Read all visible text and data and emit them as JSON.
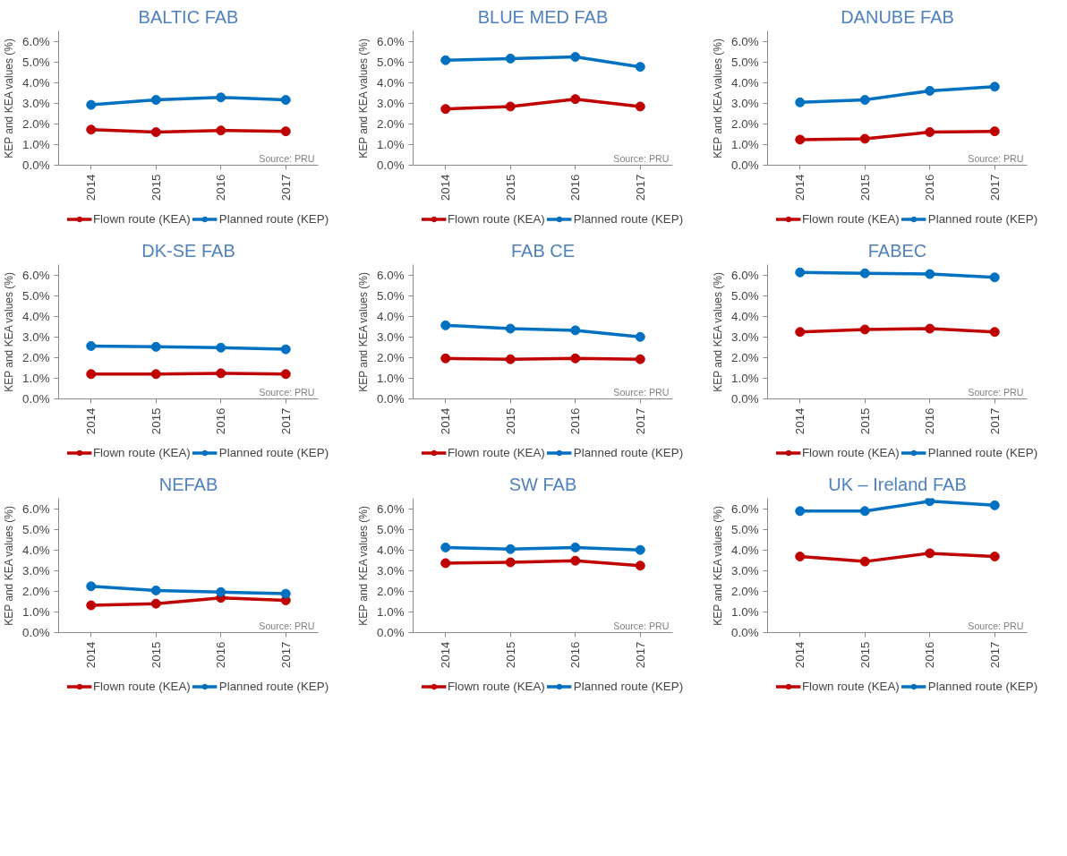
{
  "chart_data": [
    {
      "type": "line",
      "title": "BALTIC FAB",
      "ylabel": "KEP and KEA values (%)",
      "categories": [
        "2014",
        "2015",
        "2016",
        "2017"
      ],
      "ylim": [
        0,
        6.5
      ],
      "yticks": [
        {
          "value": 0,
          "label": "0.0%"
        },
        {
          "value": 1,
          "label": "1.0%"
        },
        {
          "value": 2,
          "label": "2.0%"
        },
        {
          "value": 3,
          "label": "3.0%"
        },
        {
          "value": 4,
          "label": "4.0%"
        },
        {
          "value": 5,
          "label": "5.0%"
        },
        {
          "value": 6,
          "label": "6.0%"
        }
      ],
      "marker": "circle",
      "grid": false,
      "legend": "bottom",
      "annotations": [
        "Source: PRU"
      ],
      "series": [
        {
          "name": "Flown route (KEA)",
          "color": "#c00000",
          "values": [
            1.72,
            1.6,
            1.68,
            1.64
          ]
        },
        {
          "name": "Planned route (KEP)",
          "color": "#0070c0",
          "values": [
            2.92,
            3.16,
            3.28,
            3.16
          ]
        }
      ]
    },
    {
      "type": "line",
      "title": "BLUE MED FAB",
      "ylabel": "KEP and KEA values (%)",
      "categories": [
        "2014",
        "2015",
        "2016",
        "2017"
      ],
      "ylim": [
        0,
        6.5
      ],
      "yticks": [
        {
          "value": 0,
          "label": "0.0%"
        },
        {
          "value": 1,
          "label": "1.0%"
        },
        {
          "value": 2,
          "label": "2.0%"
        },
        {
          "value": 3,
          "label": "3.0%"
        },
        {
          "value": 4,
          "label": "4.0%"
        },
        {
          "value": 5,
          "label": "5.0%"
        },
        {
          "value": 6,
          "label": "6.0%"
        }
      ],
      "marker": "circle",
      "grid": false,
      "legend": "bottom",
      "annotations": [
        "Source: PRU"
      ],
      "series": [
        {
          "name": "Flown route (KEA)",
          "color": "#c00000",
          "values": [
            2.72,
            2.84,
            3.2,
            2.84
          ]
        },
        {
          "name": "Planned route (KEP)",
          "color": "#0070c0",
          "values": [
            5.08,
            5.16,
            5.24,
            4.76
          ]
        }
      ]
    },
    {
      "type": "line",
      "title": "DANUBE FAB",
      "ylabel": "KEP and KEA values (%)",
      "categories": [
        "2014",
        "2015",
        "2016",
        "2017"
      ],
      "ylim": [
        0,
        6.5
      ],
      "yticks": [
        {
          "value": 0,
          "label": "0.0%"
        },
        {
          "value": 1,
          "label": "1.0%"
        },
        {
          "value": 2,
          "label": "2.0%"
        },
        {
          "value": 3,
          "label": "3.0%"
        },
        {
          "value": 4,
          "label": "4.0%"
        },
        {
          "value": 5,
          "label": "5.0%"
        },
        {
          "value": 6,
          "label": "6.0%"
        }
      ],
      "marker": "circle",
      "grid": false,
      "legend": "bottom",
      "annotations": [
        "Source: PRU"
      ],
      "series": [
        {
          "name": "Flown route (KEA)",
          "color": "#c00000",
          "values": [
            1.24,
            1.28,
            1.6,
            1.64
          ]
        },
        {
          "name": "Planned route (KEP)",
          "color": "#0070c0",
          "values": [
            3.04,
            3.16,
            3.6,
            3.8
          ]
        }
      ]
    },
    {
      "type": "line",
      "title": "DK-SE FAB",
      "ylabel": "KEP and KEA values (%)",
      "categories": [
        "2014",
        "2015",
        "2016",
        "2017"
      ],
      "ylim": [
        0,
        6.5
      ],
      "yticks": [
        {
          "value": 0,
          "label": "0.0%"
        },
        {
          "value": 1,
          "label": "1.0%"
        },
        {
          "value": 2,
          "label": "2.0%"
        },
        {
          "value": 3,
          "label": "3.0%"
        },
        {
          "value": 4,
          "label": "4.0%"
        },
        {
          "value": 5,
          "label": "5.0%"
        },
        {
          "value": 6,
          "label": "6.0%"
        }
      ],
      "marker": "circle",
      "grid": false,
      "legend": "bottom",
      "annotations": [
        "Source: PRU"
      ],
      "series": [
        {
          "name": "Flown route (KEA)",
          "color": "#c00000",
          "values": [
            1.2,
            1.2,
            1.24,
            1.2
          ]
        },
        {
          "name": "Planned route (KEP)",
          "color": "#0070c0",
          "values": [
            2.56,
            2.52,
            2.48,
            2.4
          ]
        }
      ]
    },
    {
      "type": "line",
      "title": "FAB CE",
      "ylabel": "KEP and KEA values (%)",
      "categories": [
        "2014",
        "2015",
        "2016",
        "2017"
      ],
      "ylim": [
        0,
        6.5
      ],
      "yticks": [
        {
          "value": 0,
          "label": "0.0%"
        },
        {
          "value": 1,
          "label": "1.0%"
        },
        {
          "value": 2,
          "label": "2.0%"
        },
        {
          "value": 3,
          "label": "3.0%"
        },
        {
          "value": 4,
          "label": "4.0%"
        },
        {
          "value": 5,
          "label": "5.0%"
        },
        {
          "value": 6,
          "label": "6.0%"
        }
      ],
      "marker": "circle",
      "grid": false,
      "legend": "bottom",
      "annotations": [
        "Source: PRU"
      ],
      "series": [
        {
          "name": "Flown route (KEA)",
          "color": "#c00000",
          "values": [
            1.96,
            1.92,
            1.96,
            1.92
          ]
        },
        {
          "name": "Planned route (KEP)",
          "color": "#0070c0",
          "values": [
            3.56,
            3.4,
            3.32,
            3.0
          ]
        }
      ]
    },
    {
      "type": "line",
      "title": "FABEC",
      "ylabel": "KEP and KEA values (%)",
      "categories": [
        "2014",
        "2015",
        "2016",
        "2017"
      ],
      "ylim": [
        0,
        6.5
      ],
      "yticks": [
        {
          "value": 0,
          "label": "0.0%"
        },
        {
          "value": 1,
          "label": "1.0%"
        },
        {
          "value": 2,
          "label": "2.0%"
        },
        {
          "value": 3,
          "label": "3.0%"
        },
        {
          "value": 4,
          "label": "4.0%"
        },
        {
          "value": 5,
          "label": "5.0%"
        },
        {
          "value": 6,
          "label": "6.0%"
        }
      ],
      "marker": "circle",
      "grid": false,
      "legend": "bottom",
      "annotations": [
        "Source: PRU"
      ],
      "series": [
        {
          "name": "Flown route (KEA)",
          "color": "#c00000",
          "values": [
            3.24,
            3.36,
            3.4,
            3.24
          ]
        },
        {
          "name": "Planned route (KEP)",
          "color": "#0070c0",
          "values": [
            6.12,
            6.08,
            6.04,
            5.88
          ]
        }
      ]
    },
    {
      "type": "line",
      "title": "NEFAB",
      "ylabel": "KEP and KEA values (%)",
      "categories": [
        "2014",
        "2015",
        "2016",
        "2017"
      ],
      "ylim": [
        0,
        6.5
      ],
      "yticks": [
        {
          "value": 0,
          "label": "0.0%"
        },
        {
          "value": 1,
          "label": "1.0%"
        },
        {
          "value": 2,
          "label": "2.0%"
        },
        {
          "value": 3,
          "label": "3.0%"
        },
        {
          "value": 4,
          "label": "4.0%"
        },
        {
          "value": 5,
          "label": "5.0%"
        },
        {
          "value": 6,
          "label": "6.0%"
        }
      ],
      "marker": "circle",
      "grid": false,
      "legend": "bottom",
      "annotations": [
        "Source: PRU"
      ],
      "series": [
        {
          "name": "Flown route (KEA)",
          "color": "#c00000",
          "values": [
            1.32,
            1.4,
            1.68,
            1.56
          ]
        },
        {
          "name": "Planned route (KEP)",
          "color": "#0070c0",
          "values": [
            2.24,
            2.04,
            1.96,
            1.88
          ]
        }
      ]
    },
    {
      "type": "line",
      "title": "SW FAB",
      "ylabel": "KEP and KEA values (%)",
      "categories": [
        "2014",
        "2015",
        "2016",
        "2017"
      ],
      "ylim": [
        0,
        6.5
      ],
      "yticks": [
        {
          "value": 0,
          "label": "0.0%"
        },
        {
          "value": 1,
          "label": "1.0%"
        },
        {
          "value": 2,
          "label": "2.0%"
        },
        {
          "value": 3,
          "label": "3.0%"
        },
        {
          "value": 4,
          "label": "4.0%"
        },
        {
          "value": 5,
          "label": "5.0%"
        },
        {
          "value": 6,
          "label": "6.0%"
        }
      ],
      "marker": "circle",
      "grid": false,
      "legend": "bottom",
      "annotations": [
        "Source: PRU"
      ],
      "series": [
        {
          "name": "Flown route (KEA)",
          "color": "#c00000",
          "values": [
            3.36,
            3.4,
            3.48,
            3.24
          ]
        },
        {
          "name": "Planned route (KEP)",
          "color": "#0070c0",
          "values": [
            4.12,
            4.04,
            4.12,
            4.0
          ]
        }
      ]
    },
    {
      "type": "line",
      "title": "UK – Ireland FAB",
      "ylabel": "KEP and KEA values (%)",
      "categories": [
        "2014",
        "2015",
        "2016",
        "2017"
      ],
      "ylim": [
        0,
        6.5
      ],
      "yticks": [
        {
          "value": 0,
          "label": "0.0%"
        },
        {
          "value": 1,
          "label": "1.0%"
        },
        {
          "value": 2,
          "label": "2.0%"
        },
        {
          "value": 3,
          "label": "3.0%"
        },
        {
          "value": 4,
          "label": "4.0%"
        },
        {
          "value": 5,
          "label": "5.0%"
        },
        {
          "value": 6,
          "label": "6.0%"
        }
      ],
      "marker": "circle",
      "grid": false,
      "legend": "bottom",
      "annotations": [
        "Source: PRU"
      ],
      "series": [
        {
          "name": "Flown route (KEA)",
          "color": "#c00000",
          "values": [
            3.68,
            3.44,
            3.84,
            3.68
          ]
        },
        {
          "name": "Planned route (KEP)",
          "color": "#0070c0",
          "values": [
            5.88,
            5.88,
            6.36,
            6.16
          ]
        }
      ]
    }
  ]
}
